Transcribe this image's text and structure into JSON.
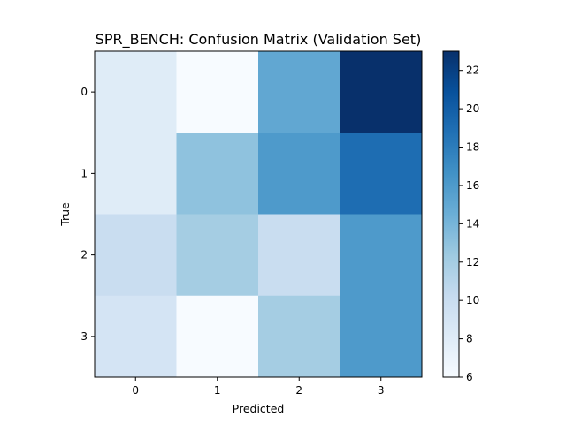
{
  "chart_data": {
    "type": "heatmap",
    "title": "SPR_BENCH: Confusion Matrix (Validation Set)",
    "xlabel": "Predicted",
    "ylabel": "True",
    "x_categories": [
      "0",
      "1",
      "2",
      "3"
    ],
    "y_categories": [
      "0",
      "1",
      "2",
      "3"
    ],
    "values": [
      [
        8,
        6,
        15,
        23
      ],
      [
        8,
        13,
        16,
        19
      ],
      [
        10,
        12,
        10,
        16
      ],
      [
        9,
        6,
        12,
        16
      ]
    ],
    "colormap": "Blues",
    "vmin": 6,
    "vmax": 23,
    "colorbar_ticks": [
      6,
      8,
      10,
      12,
      14,
      16,
      18,
      20,
      22
    ]
  }
}
